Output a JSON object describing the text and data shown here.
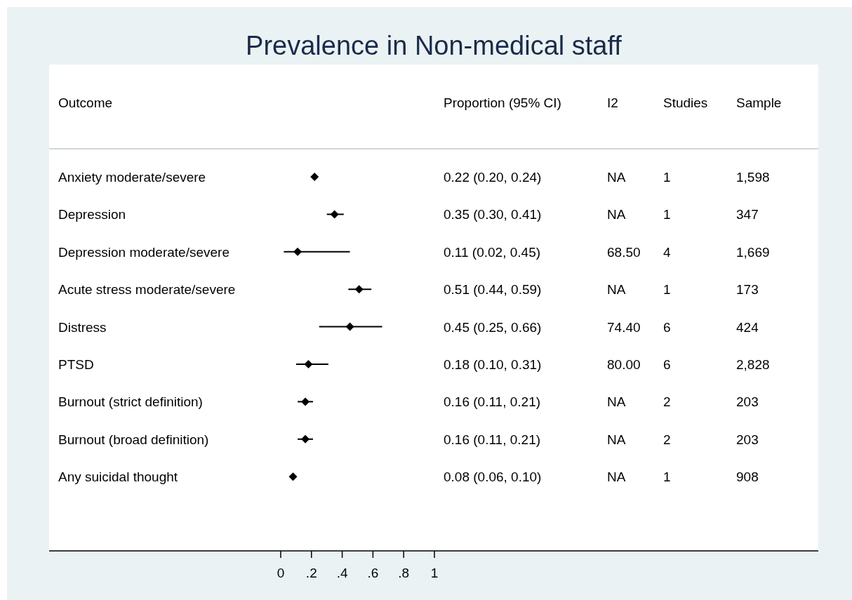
{
  "chart_data": {
    "type": "scatter",
    "title": "Prevalence in Non-medical staff",
    "ylabel": "Outcome",
    "orientation": "horizontal",
    "marker": "diamond",
    "color": "#000000",
    "grid": false,
    "categories": [
      "Anxiety moderate/severe",
      "Depression",
      "Depression moderate/severe",
      "Acute stress moderate/severe",
      "Distress",
      "PTSD",
      "Burnout (strict definition)",
      "Burnout (broad definition)",
      "Any suicidal thought"
    ],
    "values": [
      0.22,
      0.35,
      0.11,
      0.51,
      0.45,
      0.18,
      0.16,
      0.16,
      0.08
    ],
    "errors": [
      [
        0.2,
        0.24
      ],
      [
        0.3,
        0.41
      ],
      [
        0.02,
        0.45
      ],
      [
        0.44,
        0.59
      ],
      [
        0.25,
        0.66
      ],
      [
        0.1,
        0.31
      ],
      [
        0.11,
        0.21
      ],
      [
        0.11,
        0.21
      ],
      [
        0.06,
        0.1
      ]
    ],
    "value_labels": [
      "0.22 (0.20, 0.24)",
      "0.35 (0.30, 0.41)",
      "0.11 (0.02, 0.45)",
      "0.51 (0.44, 0.59)",
      "0.45 (0.25, 0.66)",
      "0.18 (0.10, 0.31)",
      "0.16 (0.11, 0.21)",
      "0.16 (0.11, 0.21)",
      "0.08 (0.06, 0.10)"
    ],
    "xlim": [
      0,
      1
    ],
    "xticks": [
      0,
      {
        "value": 0.2,
        "label": ".2"
      },
      {
        "value": 0.4,
        "label": ".4"
      },
      {
        "value": 0.6,
        "label": ".6"
      },
      {
        "value": 0.8,
        "label": ".8"
      },
      1
    ],
    "annotations": [
      "Proportion (95% CI)",
      "I2",
      "Studies",
      "Sample",
      "NA",
      "1",
      "1,598",
      "NA",
      "1",
      "347",
      "68.50",
      "4",
      "1,669",
      "NA",
      "1",
      "173",
      "74.40",
      "6",
      "424",
      "80.00",
      "6",
      "2,828",
      "NA",
      "2",
      "203",
      "NA",
      "2",
      "203",
      "NA",
      "1",
      "908"
    ]
  }
}
